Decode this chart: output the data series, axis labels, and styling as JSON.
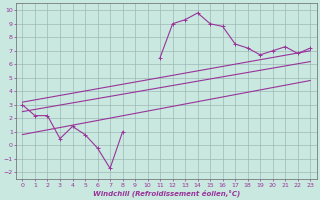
{
  "xlabel": "Windchill (Refroidissement éolien,°C)",
  "ylabel": "",
  "bg_color": "#c8e8e0",
  "grid_color": "#a0b8b8",
  "line_color": "#993399",
  "xlim": [
    -0.5,
    23.5
  ],
  "ylim": [
    -2.5,
    10.5
  ],
  "xticks": [
    0,
    1,
    2,
    3,
    4,
    5,
    6,
    7,
    8,
    9,
    10,
    11,
    12,
    13,
    14,
    15,
    16,
    17,
    18,
    19,
    20,
    21,
    22,
    23
  ],
  "yticks": [
    -2,
    -1,
    0,
    1,
    2,
    3,
    4,
    5,
    6,
    7,
    8,
    9,
    10
  ],
  "main_line_x": [
    0,
    1,
    2,
    3,
    4,
    5,
    6,
    7,
    8,
    9,
    10,
    11,
    12,
    13,
    14,
    15,
    16,
    17,
    18,
    19,
    20,
    21,
    22,
    23
  ],
  "main_line_y": [
    3.0,
    2.2,
    2.2,
    0.5,
    1.4,
    0.8,
    -0.2,
    -1.7,
    1.0,
    null,
    null,
    6.5,
    9.0,
    9.3,
    9.8,
    9.0,
    8.8,
    7.5,
    7.2,
    6.7,
    7.0,
    7.3,
    6.8,
    7.2
  ],
  "reg_line_x": [
    0,
    23
  ],
  "reg_line_y": [
    2.5,
    6.2
  ],
  "upper_line_x": [
    0,
    23
  ],
  "upper_line_y": [
    3.2,
    7.0
  ],
  "lower_line_x": [
    0,
    23
  ],
  "lower_line_y": [
    0.8,
    4.8
  ]
}
